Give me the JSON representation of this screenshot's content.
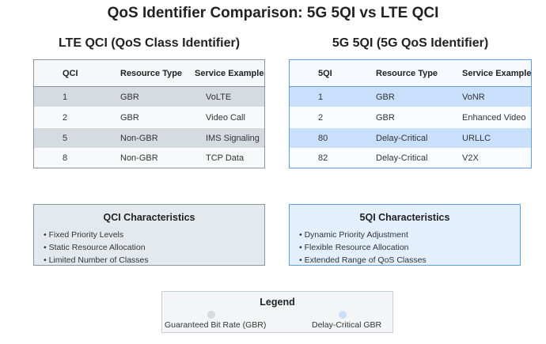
{
  "title": "QoS Identifier Comparison: 5G 5QI vs LTE QCI",
  "lte": {
    "heading": "LTE QCI (QoS Class Identifier)",
    "columns": [
      "QCI",
      "Resource Type",
      "Service Example"
    ],
    "rows": [
      [
        "1",
        "GBR",
        "VoLTE"
      ],
      [
        "2",
        "GBR",
        "Video Call"
      ],
      [
        "5",
        "Non-GBR",
        "IMS Signaling"
      ],
      [
        "8",
        "Non-GBR",
        "TCP Data"
      ]
    ],
    "characteristics": {
      "title": "QCI Characteristics",
      "items": [
        "• Fixed Priority Levels",
        "• Static Resource Allocation",
        "• Limited Number of Classes"
      ]
    }
  },
  "nr": {
    "heading": "5G 5QI (5G QoS Identifier)",
    "columns": [
      "5QI",
      "Resource Type",
      "Service Example"
    ],
    "rows": [
      [
        "1",
        "GBR",
        "VoNR"
      ],
      [
        "2",
        "GBR",
        "Enhanced Video"
      ],
      [
        "80",
        "Delay-Critical",
        "URLLC"
      ],
      [
        "82",
        "Delay-Critical",
        "V2X"
      ]
    ],
    "characteristics": {
      "title": "5QI Characteristics",
      "items": [
        "• Dynamic Priority Adjustment",
        "• Flexible Resource Allocation",
        "• Extended Range of QoS Classes"
      ]
    }
  },
  "legend": {
    "title": "Legend",
    "items": [
      {
        "label": "Guaranteed Bit Rate (GBR)",
        "color": "#d5dbe1"
      },
      {
        "label": "Delay-Critical GBR",
        "color": "#c8e0fb"
      }
    ]
  },
  "colors": {
    "lte_accent": "#8c96a3",
    "nr_accent": "#5f9fe8",
    "lte_highlight": "#d5dbe1",
    "nr_highlight": "#c8e0fb"
  }
}
